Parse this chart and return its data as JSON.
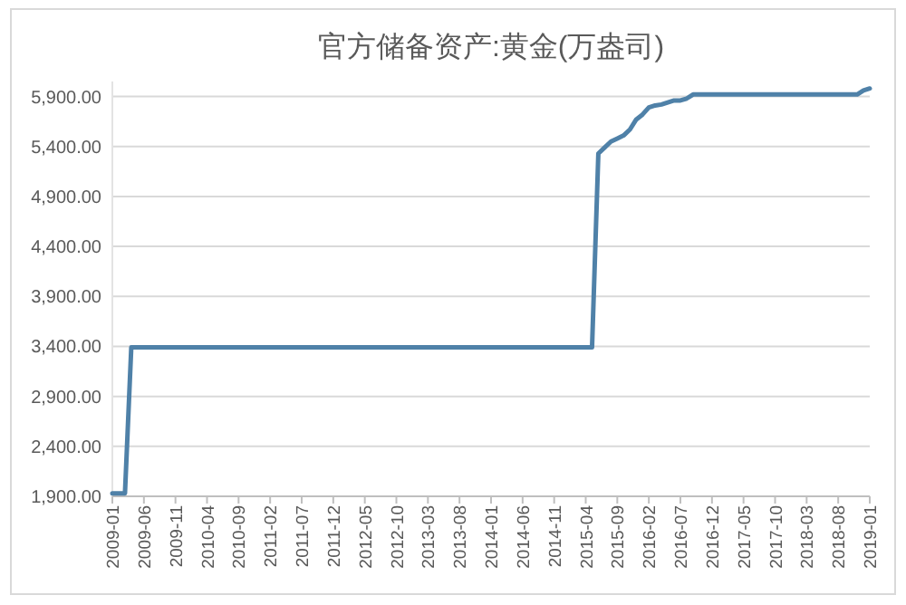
{
  "chart_data": {
    "type": "line",
    "title": "官方储备资产:黄金(万盎司)",
    "categories": [
      "2009-01",
      null,
      null,
      null,
      null,
      "2009-06",
      null,
      null,
      null,
      null,
      "2009-11",
      null,
      null,
      null,
      null,
      "2010-04",
      null,
      null,
      null,
      null,
      "2010-09",
      null,
      null,
      null,
      null,
      "2011-02",
      null,
      null,
      null,
      null,
      "2011-07",
      null,
      null,
      null,
      null,
      "2011-12",
      null,
      null,
      null,
      null,
      "2012-05",
      null,
      null,
      null,
      null,
      "2012-10",
      null,
      null,
      null,
      null,
      "2013-03",
      null,
      null,
      null,
      null,
      "2013-08",
      null,
      null,
      null,
      null,
      "2014-01",
      null,
      null,
      null,
      null,
      "2014-06",
      null,
      null,
      null,
      null,
      "2014-11",
      null,
      null,
      null,
      null,
      "2015-04",
      null,
      null,
      null,
      null,
      "2015-09",
      null,
      null,
      null,
      null,
      "2016-02",
      null,
      null,
      null,
      null,
      "2016-07",
      null,
      null,
      null,
      null,
      "2016-12",
      null,
      null,
      null,
      null,
      "2017-05",
      null,
      null,
      null,
      null,
      "2017-10",
      null,
      null,
      null,
      null,
      "2018-03",
      null,
      null,
      null,
      null,
      "2018-08",
      null,
      null,
      null,
      null,
      "2019-01"
    ],
    "series": [
      {
        "color": "#4f81a8",
        "values": [
          1930,
          1930,
          1930,
          3390,
          3390,
          3390,
          3390,
          3390,
          3390,
          3390,
          3390,
          3390,
          3390,
          3390,
          3390,
          3390,
          3390,
          3390,
          3390,
          3390,
          3390,
          3390,
          3390,
          3390,
          3390,
          3390,
          3390,
          3390,
          3390,
          3390,
          3390,
          3390,
          3390,
          3390,
          3390,
          3390,
          3390,
          3390,
          3390,
          3390,
          3390,
          3390,
          3390,
          3390,
          3390,
          3390,
          3390,
          3390,
          3390,
          3390,
          3390,
          3390,
          3390,
          3390,
          3390,
          3390,
          3390,
          3390,
          3390,
          3390,
          3390,
          3390,
          3390,
          3390,
          3390,
          3390,
          3390,
          3390,
          3390,
          3390,
          3390,
          3390,
          3390,
          3390,
          3390,
          3390,
          3390,
          5330,
          5390,
          5450,
          5480,
          5510,
          5570,
          5670,
          5720,
          5790,
          5810,
          5820,
          5840,
          5860,
          5860,
          5880,
          5920,
          5920,
          5920,
          5920,
          5920,
          5920,
          5920,
          5920,
          5920,
          5920,
          5920,
          5920,
          5920,
          5920,
          5920,
          5920,
          5920,
          5920,
          5920,
          5920,
          5920,
          5920,
          5920,
          5920,
          5920,
          5920,
          5920,
          5960,
          5980
        ]
      }
    ],
    "ylim": [
      1900,
      6050
    ],
    "yticks": [
      {
        "value": 1900,
        "label": "1,900.00"
      },
      {
        "value": 2400,
        "label": "2,400.00"
      },
      {
        "value": 2900,
        "label": "2,900.00"
      },
      {
        "value": 3400,
        "label": "3,400.00"
      },
      {
        "value": 3900,
        "label": "3,900.00"
      },
      {
        "value": 4400,
        "label": "4,400.00"
      },
      {
        "value": 4900,
        "label": "4,900.00"
      },
      {
        "value": 5400,
        "label": "5,400.00"
      },
      {
        "value": 5900,
        "label": "5,900.00"
      }
    ],
    "grid": "y",
    "marker": "none",
    "line_style": "solid"
  }
}
